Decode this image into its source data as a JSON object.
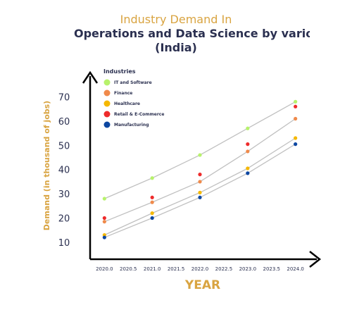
{
  "chart_data": {
    "type": "line",
    "title_line1": "Industry Demand In",
    "title_line2": "Operations and Data Science by various sectors",
    "title_line3": "(India)",
    "xlabel": "YEAR",
    "ylabel": "Demand  (in thousand of jobs)",
    "legend_title": "Industries",
    "legend_position": "top-left",
    "xlim": [
      2019.7,
      2024.3
    ],
    "ylim": [
      3,
      78
    ],
    "x_ticks": [
      "2020.0",
      "2020.5",
      "2021.0",
      "2021.5",
      "2022.0",
      "2022.5",
      "2023.0",
      "2023.5",
      "2024.0"
    ],
    "y_ticks": [
      "10",
      "20",
      "30",
      "40",
      "50",
      "60",
      "70"
    ],
    "x": [
      2020,
      2021,
      2022,
      2023,
      2024
    ],
    "line_color": "#c0c0c0",
    "series": [
      {
        "name": "IT and Software",
        "color": "#b7f26b",
        "values": [
          28,
          36.5,
          46,
          57,
          68
        ]
      },
      {
        "name": "Finance",
        "color": "#f08a4b",
        "values": [
          18.5,
          26.5,
          35,
          47.5,
          61
        ]
      },
      {
        "name": "Healthcare",
        "color": "#f5b800",
        "values": [
          13,
          22,
          30.5,
          40.5,
          53
        ]
      },
      {
        "name": "Retail & E-Commerce",
        "color": "#ee2b2b",
        "values": [
          20,
          28.5,
          38,
          50.5,
          66
        ]
      },
      {
        "name": "Manufacturing",
        "color": "#0d47a1",
        "values": [
          12,
          20,
          28.5,
          38.5,
          50.5
        ]
      }
    ],
    "connected_series": [
      "IT and Software",
      "Finance",
      "Healthcare",
      "Manufacturing"
    ]
  }
}
